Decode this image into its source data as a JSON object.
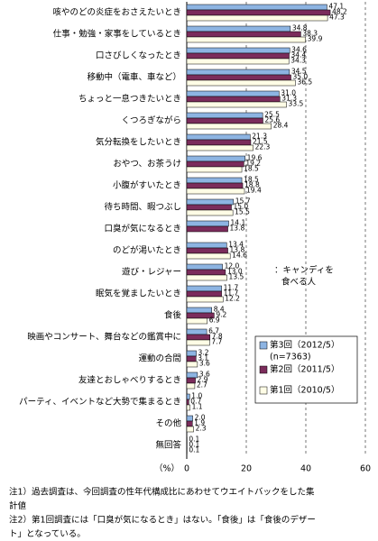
{
  "chart_data": {
    "type": "bar",
    "orientation": "horizontal",
    "categories": [
      "咳やのどの炎症をおさえたいとき",
      "仕事・勉強・家事をしているとき",
      "口さびしくなったとき",
      "移動中（電車、車など）",
      "ちょっと一息つきたいとき",
      "くつろぎながら",
      "気分転換をしたいとき",
      "おやつ、お茶うけ",
      "小腹がすいたとき",
      "待ち時間、暇つぶし",
      "口臭が気になるとき",
      "のどが渇いたとき",
      "遊び・レジャー",
      "眠気を覚ましたいとき",
      "食後",
      "映画やコンサート、舞台などの鑑賞中に",
      "運動の合間",
      "友達とおしゃべりするとき",
      "パーティ、イベントなど大勢で集まるとき",
      "その他",
      "無回答"
    ],
    "series": [
      {
        "name": "第3回（2012/5）",
        "color": "#8db4e2",
        "values": [
          47.1,
          34.8,
          34.6,
          34.5,
          31,
          25.5,
          21.3,
          19.6,
          18.5,
          15.7,
          14.1,
          13.4,
          12,
          11.7,
          8.4,
          6.7,
          3.2,
          3.6,
          1,
          2,
          0.1
        ],
        "value_labels": [
          "47.1",
          "34.8",
          "34.6",
          "34.5",
          "31.0",
          "25.5",
          "21.3",
          "19.6",
          "18.5",
          "15.7",
          "14.1",
          "13.4",
          "12.0",
          "11.7",
          "8.4",
          "6.7",
          "3.2",
          "3.6",
          "1.0",
          "2.0",
          "0.1"
        ]
      },
      {
        "name": "第2回（2011/5）",
        "color": "#7b2c5b",
        "values": [
          48.2,
          38.3,
          34.4,
          35,
          31.3,
          25.6,
          21.5,
          19.2,
          18.8,
          15,
          13.8,
          13.8,
          13,
          11.7,
          9.2,
          7.8,
          3.1,
          2.9,
          0.7,
          1.9,
          0.1
        ],
        "value_labels": [
          "48.2",
          "38.3",
          "34.4",
          "35.0",
          "31.3",
          "25.6",
          "21.5",
          "19.2",
          "18.8",
          "15.0",
          "13.8",
          "13.8",
          "13.0",
          "11.7",
          "9.2",
          "7.8",
          "3.1",
          "2.9",
          "0.7",
          "1.9",
          "0.1"
        ]
      },
      {
        "name": "第1回（2010/5）",
        "color": "#fffde6",
        "values": [
          47.3,
          39.9,
          34.3,
          36.5,
          33.5,
          28.4,
          22.3,
          18.5,
          19.4,
          15.5,
          null,
          14.6,
          13.5,
          12.2,
          6.9,
          7.7,
          3.6,
          2.7,
          1.1,
          2.3,
          0.1
        ],
        "value_labels": [
          "47.3",
          "39.9",
          "34.3",
          "36.5",
          "33.5",
          "28.4",
          "22.3",
          "18.5",
          "19.4",
          "15.5",
          null,
          "14.6",
          "13.5",
          "12.2",
          "6.9",
          "7.7",
          "3.6",
          "2.7",
          "1.1",
          "2.3",
          "0.1"
        ]
      }
    ],
    "legend_note": "(n=7363)",
    "annotation": [
      "：キャンディを",
      "食べる人"
    ],
    "x_unit": "（%）",
    "xlim": [
      0,
      60
    ],
    "xticks": [
      0,
      20,
      40,
      60
    ],
    "grid": true,
    "notes": [
      "注1）過去調査は、今回調査の性年代構成比にあわせてウエイトバックをした集",
      "計値",
      "注2）第1回調査には「口臭が気になるとき」はない。「食後」は「食後のデザー",
      "ト」となっている。"
    ]
  }
}
